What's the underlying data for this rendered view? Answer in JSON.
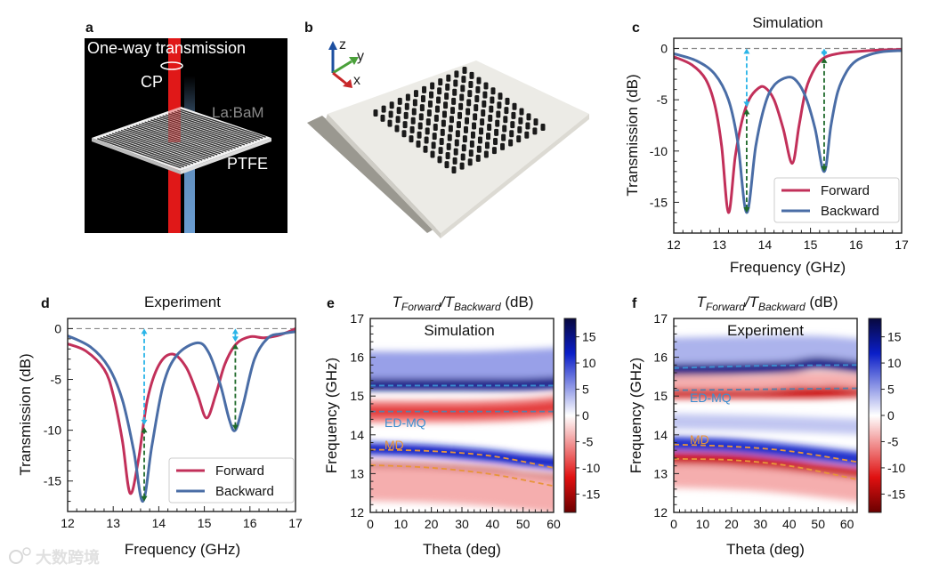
{
  "panels": {
    "a": {
      "label": "a",
      "title": "One-way transmission",
      "cp": "CP",
      "material": "La:BaM",
      "substrate": "PTFE"
    },
    "b": {
      "label": "b",
      "axes": {
        "z": "z",
        "y": "y",
        "x": "x"
      }
    },
    "c": {
      "label": "c"
    },
    "d": {
      "label": "d"
    },
    "e": {
      "label": "e"
    },
    "f": {
      "label": "f"
    }
  },
  "colors": {
    "forward": "#c2305a",
    "backward": "#4a6da6",
    "cyan_arrow": "#2bb5e8",
    "green_arrow": "#1e6a2a",
    "md": "#e8953a",
    "edmq": "#3a8fd0"
  },
  "watermark": "大数跨境",
  "chart_data": [
    {
      "id": "c",
      "type": "line",
      "title": "Simulation",
      "xlabel": "Frequency (GHz)",
      "ylabel": "Transmission (dB)",
      "xlim": [
        12,
        17
      ],
      "ylim": [
        -18,
        1
      ],
      "xticks": [
        12,
        13,
        14,
        15,
        16,
        17
      ],
      "yticks": [
        0,
        -5,
        -10,
        -15
      ],
      "legend": {
        "placement": "lower-right",
        "entries": [
          "Forward",
          "Backward"
        ]
      },
      "series": [
        {
          "name": "Forward",
          "x": [
            12,
            12.4,
            12.7,
            12.9,
            13.05,
            13.2,
            13.35,
            13.5,
            13.65,
            13.85,
            14.0,
            14.2,
            14.4,
            14.6,
            14.75,
            14.9,
            15.1,
            15.3,
            15.6,
            16,
            16.5,
            17
          ],
          "y": [
            -0.8,
            -1.6,
            -3.0,
            -5.5,
            -9.5,
            -16.0,
            -10.5,
            -7.0,
            -5.0,
            -3.9,
            -3.8,
            -5.0,
            -7.8,
            -11.2,
            -7.5,
            -4.0,
            -1.9,
            -0.9,
            -0.5,
            -0.3,
            -0.15,
            -0.1
          ]
        },
        {
          "name": "Backward",
          "x": [
            12,
            12.5,
            12.9,
            13.2,
            13.4,
            13.6,
            13.8,
            14.0,
            14.2,
            14.5,
            14.7,
            14.9,
            15.1,
            15.3,
            15.45,
            15.6,
            15.8,
            16.0,
            16.3,
            16.6,
            17
          ],
          "y": [
            -0.5,
            -1.2,
            -2.5,
            -5.0,
            -9.0,
            -16.0,
            -9.5,
            -5.5,
            -3.6,
            -2.8,
            -3.2,
            -4.8,
            -7.8,
            -12.0,
            -7.5,
            -4.2,
            -2.2,
            -1.2,
            -0.6,
            -0.3,
            -0.2
          ]
        }
      ],
      "annotations": [
        {
          "x": 13.6,
          "from": -5.7,
          "to": 0,
          "color": "cyan"
        },
        {
          "x": 13.6,
          "from": -16.0,
          "to": -5.9,
          "color": "green"
        },
        {
          "x": 15.3,
          "from": -0.8,
          "to": 0,
          "color": "cyan"
        },
        {
          "x": 15.3,
          "from": -12.0,
          "to": -0.9,
          "color": "green"
        }
      ],
      "reference_line": 0
    },
    {
      "id": "d",
      "type": "line",
      "title": "Experiment",
      "xlabel": "Frequency (GHz)",
      "ylabel": "Transmission (dB)",
      "xlim": [
        12,
        17
      ],
      "ylim": [
        -18,
        1
      ],
      "xticks": [
        12,
        13,
        14,
        15,
        16,
        17
      ],
      "yticks": [
        0,
        -5,
        -10,
        -15
      ],
      "legend": {
        "placement": "lower-right",
        "entries": [
          "Forward",
          "Backward"
        ]
      },
      "series": [
        {
          "name": "Forward",
          "x": [
            12,
            12.4,
            12.8,
            13.0,
            13.2,
            13.37,
            13.55,
            13.75,
            14.0,
            14.3,
            14.6,
            14.85,
            15.05,
            15.25,
            15.45,
            15.7,
            16.0,
            16.3,
            16.6,
            16.85,
            17
          ],
          "y": [
            -1.5,
            -2.2,
            -4.0,
            -6.5,
            -11.0,
            -16.2,
            -13.0,
            -7.0,
            -3.6,
            -2.5,
            -3.8,
            -6.5,
            -8.8,
            -6.5,
            -3.5,
            -1.5,
            -0.8,
            -0.9,
            -0.7,
            -0.3,
            0.0
          ]
        },
        {
          "name": "Backward",
          "x": [
            12,
            12.5,
            12.9,
            13.2,
            13.45,
            13.65,
            13.85,
            14.1,
            14.4,
            14.85,
            15.1,
            15.35,
            15.55,
            15.68,
            15.85,
            16.1,
            16.4,
            16.7,
            17
          ],
          "y": [
            -0.7,
            -1.8,
            -3.8,
            -7.0,
            -12.0,
            -17.0,
            -11.5,
            -5.5,
            -2.6,
            -1.4,
            -2.4,
            -5.5,
            -9.0,
            -10.0,
            -7.5,
            -3.0,
            -0.9,
            -0.5,
            -0.3
          ]
        }
      ],
      "annotations": [
        {
          "x": 13.68,
          "from": -9.5,
          "to": 0,
          "color": "cyan"
        },
        {
          "x": 13.68,
          "from": -17.0,
          "to": -9.7,
          "color": "green"
        },
        {
          "x": 15.68,
          "from": -1.3,
          "to": 0,
          "color": "cyan"
        },
        {
          "x": 15.68,
          "from": -10.0,
          "to": -1.5,
          "color": "green"
        }
      ],
      "reference_line": 0
    },
    {
      "id": "e",
      "type": "heatmap",
      "inset_label": "Simulation",
      "title_parts": [
        "T",
        "Forward",
        "/T",
        "Backward",
        " (dB)"
      ],
      "xlabel": "Theta (deg)",
      "ylabel": "Frequency (GHz)",
      "xlim": [
        0,
        60
      ],
      "ylim": [
        12,
        17
      ],
      "xticks": [
        0,
        10,
        20,
        30,
        40,
        50,
        60
      ],
      "yticks": [
        12,
        13,
        14,
        15,
        16,
        17
      ],
      "colorbar": {
        "range": [
          -18.5,
          18.5
        ],
        "ticks": [
          15,
          10,
          5,
          0,
          -5,
          -10,
          -15
        ]
      },
      "mode_labels": [
        {
          "text": "ED-MQ",
          "color": "edmq"
        },
        {
          "text": "MD",
          "color": "md"
        }
      ],
      "bands": [
        {
          "value": 5,
          "width": 0.8,
          "theta": [
            0,
            30,
            50,
            60
          ],
          "freq": [
            15.75,
            15.75,
            15.8,
            15.85
          ]
        },
        {
          "value": 15,
          "width": 0.3,
          "theta": [
            0,
            30,
            50,
            60
          ],
          "freq": [
            15.3,
            15.3,
            15.3,
            15.35
          ]
        },
        {
          "value": -7,
          "width": 0.55,
          "theta": [
            0,
            30,
            50,
            60
          ],
          "freq": [
            14.6,
            14.6,
            14.65,
            14.75
          ]
        },
        {
          "value": -11,
          "width": 0.2,
          "theta": [
            0,
            30,
            50,
            60
          ],
          "freq": [
            14.6,
            14.6,
            14.65,
            14.75
          ]
        },
        {
          "value": 12,
          "width": 0.3,
          "theta": [
            0,
            20,
            40,
            50,
            60
          ],
          "freq": [
            13.65,
            13.58,
            13.45,
            13.35,
            13.25
          ]
        },
        {
          "value": -14,
          "width": 0.4,
          "theta": [
            0,
            20,
            40,
            50,
            60
          ],
          "freq": [
            13.1,
            13.05,
            12.95,
            12.85,
            12.75
          ]
        },
        {
          "value": -4,
          "width": 0.9,
          "theta": [
            0,
            20,
            40,
            60
          ],
          "freq": [
            12.75,
            12.7,
            12.6,
            12.4
          ]
        }
      ],
      "dashed_lines": [
        {
          "color": "edmq",
          "theta": [
            0,
            60
          ],
          "freq": [
            15.27,
            15.27
          ]
        },
        {
          "color": "gray",
          "theta": [
            0,
            60
          ],
          "freq": [
            14.6,
            14.6
          ]
        },
        {
          "color": "md",
          "theta": [
            0,
            20,
            40,
            60
          ],
          "freq": [
            13.62,
            13.58,
            13.45,
            13.15
          ]
        },
        {
          "color": "md",
          "theta": [
            0,
            20,
            40,
            60
          ],
          "freq": [
            13.22,
            13.15,
            12.98,
            12.68
          ]
        }
      ]
    },
    {
      "id": "f",
      "type": "heatmap",
      "inset_label": "Experiment",
      "title_parts": [
        "T",
        "Forward",
        "/T",
        "Backward",
        " (dB)"
      ],
      "xlabel": "Theta (deg)",
      "ylabel": "Frequency (GHz)",
      "xlim": [
        0,
        63.5
      ],
      "ylim": [
        12,
        17
      ],
      "xticks": [
        0,
        10,
        20,
        30,
        40,
        50,
        60
      ],
      "yticks": [
        12,
        13,
        14,
        15,
        16,
        17
      ],
      "colorbar": {
        "range": [
          -18.5,
          18.5
        ],
        "ticks": [
          15,
          10,
          5,
          0,
          -5,
          -10,
          -15
        ]
      },
      "mode_labels": [
        {
          "text": "ED-MQ",
          "color": "edmq"
        },
        {
          "text": "MD",
          "color": "md"
        }
      ],
      "bands": [
        {
          "value": 4,
          "width": 0.7,
          "theta": [
            0,
            30,
            50,
            63.5
          ],
          "freq": [
            16.15,
            16.2,
            16.2,
            16.1
          ]
        },
        {
          "value": 15,
          "width": 0.3,
          "theta": [
            0,
            20,
            40,
            50,
            63.5
          ],
          "freq": [
            15.68,
            15.7,
            15.75,
            15.85,
            15.72
          ]
        },
        {
          "value": -13,
          "width": 0.3,
          "theta": [
            0,
            30,
            50,
            63.5
          ],
          "freq": [
            15.1,
            15.1,
            15.1,
            15.15
          ]
        },
        {
          "value": -4,
          "width": 0.35,
          "theta": [
            0,
            30,
            50,
            63.5
          ],
          "freq": [
            15.35,
            15.35,
            15.45,
            15.35
          ]
        },
        {
          "value": 3,
          "width": 0.4,
          "theta": [
            0,
            30,
            63.5
          ],
          "freq": [
            14.35,
            14.3,
            14.2
          ]
        },
        {
          "value": 11,
          "width": 0.35,
          "theta": [
            0,
            20,
            40,
            50,
            63.5
          ],
          "freq": [
            13.78,
            13.72,
            13.58,
            13.5,
            13.35
          ]
        },
        {
          "value": -13,
          "width": 0.3,
          "theta": [
            0,
            20,
            40,
            50,
            63.5
          ],
          "freq": [
            13.4,
            13.35,
            13.2,
            13.1,
            12.95
          ]
        },
        {
          "value": -4,
          "width": 0.6,
          "theta": [
            0,
            30,
            63.5
          ],
          "freq": [
            12.95,
            12.85,
            12.55
          ]
        }
      ],
      "dashed_lines": [
        {
          "color": "edmq",
          "theta": [
            0,
            30,
            63.5
          ],
          "freq": [
            15.72,
            15.78,
            15.8
          ]
        },
        {
          "color": "gray",
          "theta": [
            0,
            63.5
          ],
          "freq": [
            15.15,
            15.2
          ]
        },
        {
          "color": "md",
          "theta": [
            0,
            20,
            40,
            63.5
          ],
          "freq": [
            13.75,
            13.7,
            13.58,
            13.3
          ]
        },
        {
          "color": "md",
          "theta": [
            0,
            20,
            40,
            63.5
          ],
          "freq": [
            13.38,
            13.35,
            13.2,
            12.85
          ]
        }
      ]
    }
  ]
}
